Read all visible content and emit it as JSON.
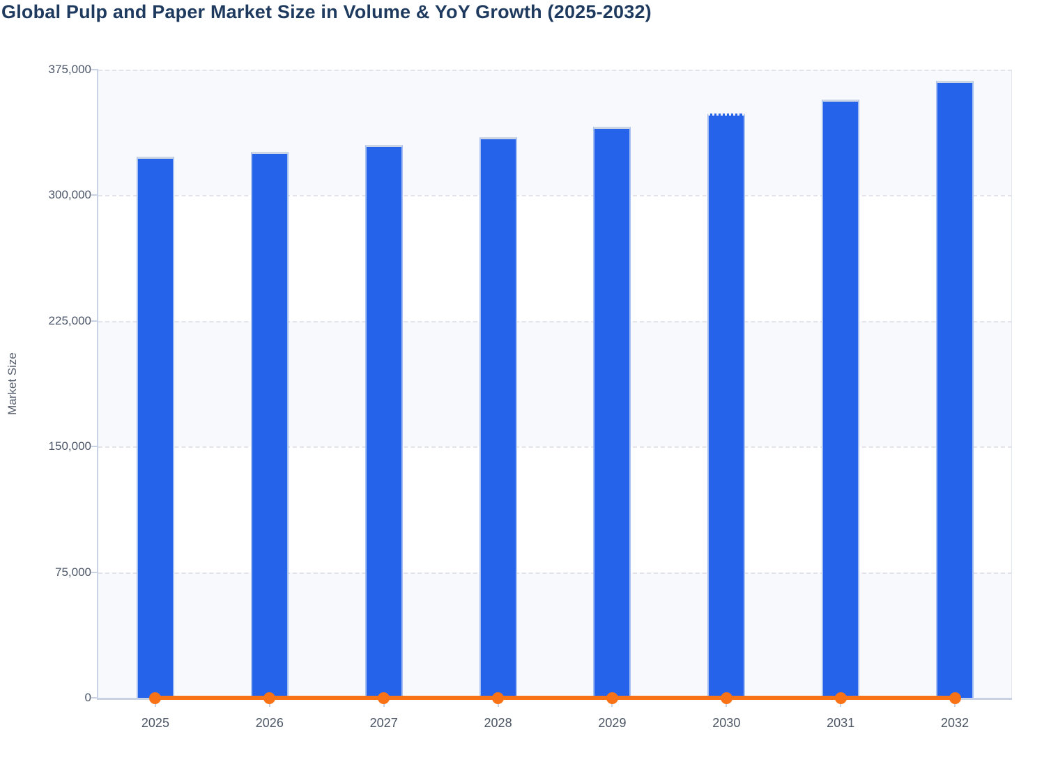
{
  "title": "Global Pulp and Paper Market Size in Volume & YoY Growth (2025-2032)",
  "y_axis": {
    "title": "Market Size",
    "tick_labels": [
      "375,000",
      "300,000",
      "225,000",
      "150,000",
      "75,000",
      "0"
    ],
    "min": 0,
    "max": 375000
  },
  "x_axis": {
    "tick_labels": [
      "2025",
      "2026",
      "2027",
      "2028",
      "2029",
      "2030",
      "2031",
      "2032"
    ]
  },
  "chart_data": {
    "type": "bar",
    "title": "Global Pulp and Paper Market Size in Volume & YoY Growth (2025-2032)",
    "categories": [
      "2025",
      "2026",
      "2027",
      "2028",
      "2029",
      "2030",
      "2031",
      "2032"
    ],
    "series": [
      {
        "name": "Market Size (Volume)",
        "type": "bar",
        "color": "#2563eb",
        "values": [
          323000,
          326100,
          330300,
          334700,
          340800,
          348700,
          357100,
          368400
        ]
      },
      {
        "name": "YoY Growth",
        "type": "line",
        "color": "#f97316",
        "values": [
          0,
          0,
          0,
          0,
          0,
          0,
          0,
          0
        ]
      }
    ],
    "xlabel": "",
    "ylabel": "Market Size",
    "ylim": [
      0,
      375000
    ],
    "grid": "horizontal-dashed",
    "legend": "none",
    "plot_band_colors_top_to_bottom": [
      "#f8f9fc",
      "#ffffff",
      "#f8f9fc",
      "#ffffff",
      "#f8f9fc"
    ],
    "special": {
      "dotted_top_bar_category": "2030"
    }
  },
  "colors": {
    "bar": "#2563eb",
    "line": "#f97316",
    "title_text": "#1f3a5f",
    "axis_text": "#4c5668",
    "grid": "#e2e4ea",
    "axis_line": "#c9d2e4"
  }
}
